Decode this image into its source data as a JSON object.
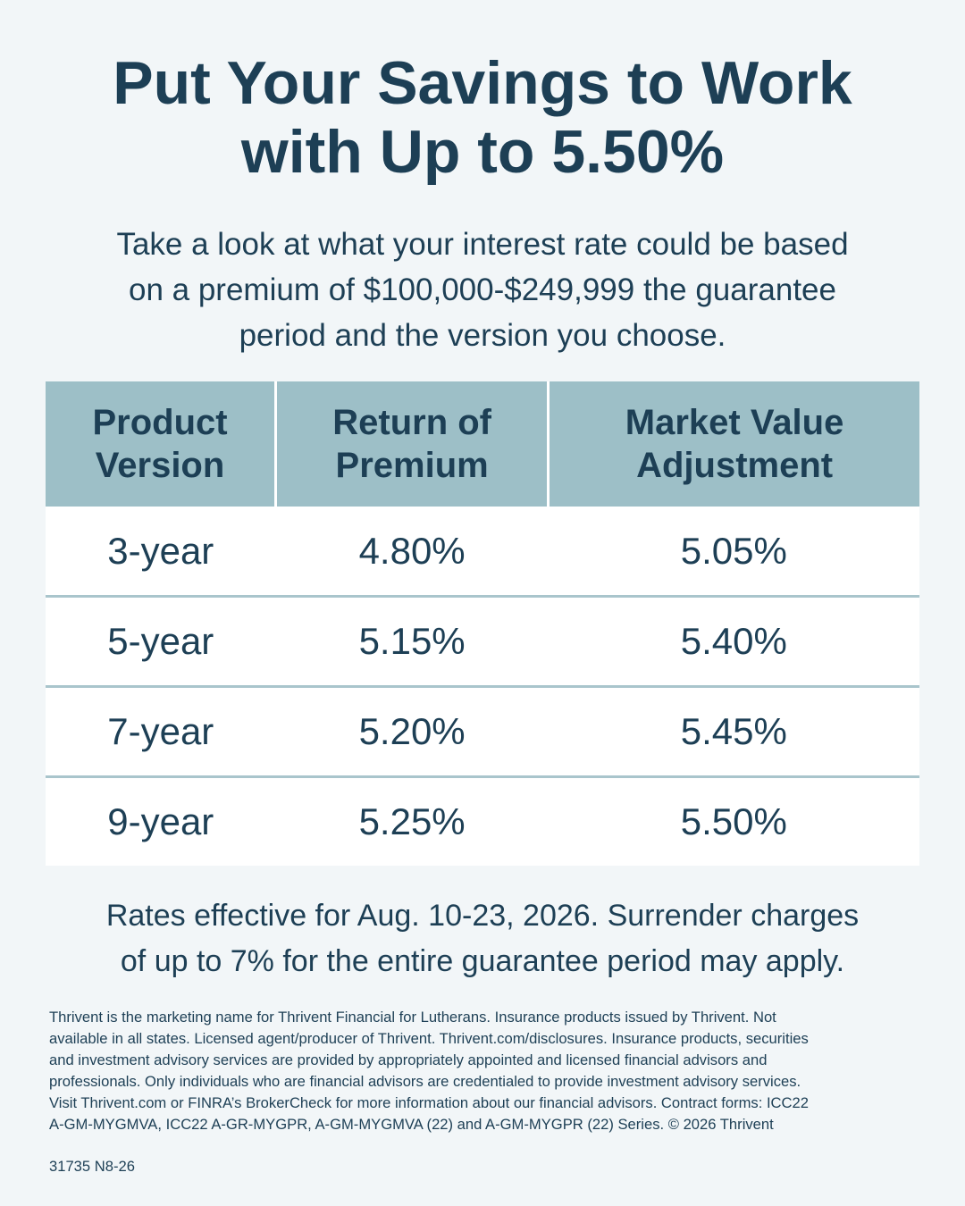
{
  "header": {
    "title_lines": [
      "Put Your Savings to Work",
      "with Up to 5.50%"
    ],
    "intro_lines": [
      "Take a look at what your interest rate could be based",
      "on a premium of $100,000-$249,999 the guarantee",
      "period and the version you choose."
    ]
  },
  "table": {
    "columns": [
      [
        "Product",
        "Version"
      ],
      [
        "Return of",
        "Premium"
      ],
      [
        "Market Value",
        "Adjustment"
      ]
    ],
    "rows": [
      [
        "3-year",
        "4.80%",
        "5.05%"
      ],
      [
        "5-year",
        "5.15%",
        "5.40%"
      ],
      [
        "7-year",
        "5.20%",
        "5.45%"
      ],
      [
        "9-year",
        "5.25%",
        "5.50%"
      ]
    ]
  },
  "note_lines": [
    "Rates effective for Aug. 10-23, 2026. Surrender charges",
    "of up to 7% for the entire guarantee period may apply."
  ],
  "disclosure_lines": [
    "Thrivent is the marketing name for Thrivent Financial for Lutherans. Insurance products issued by Thrivent. Not",
    "available in all states. Licensed agent/producer of Thrivent. Thrivent.com/disclosures. Insurance products, securities",
    "and investment advisory services are provided by appropriately appointed and licensed financial advisors and",
    "professionals. Only individuals who are financial advisors are credentialed to provide investment advisory services.",
    "Visit Thrivent.com or FINRA’s BrokerCheck for more information about our financial advisors. Contract forms: ICC22",
    "A-GM-MYGMVA, ICC22 A-GR-MYGPR, A-GM-MYGMVA (22) and A-GM-MYGPR (22) Series. © 2026 Thrivent"
  ],
  "code": "31735 N8-26"
}
